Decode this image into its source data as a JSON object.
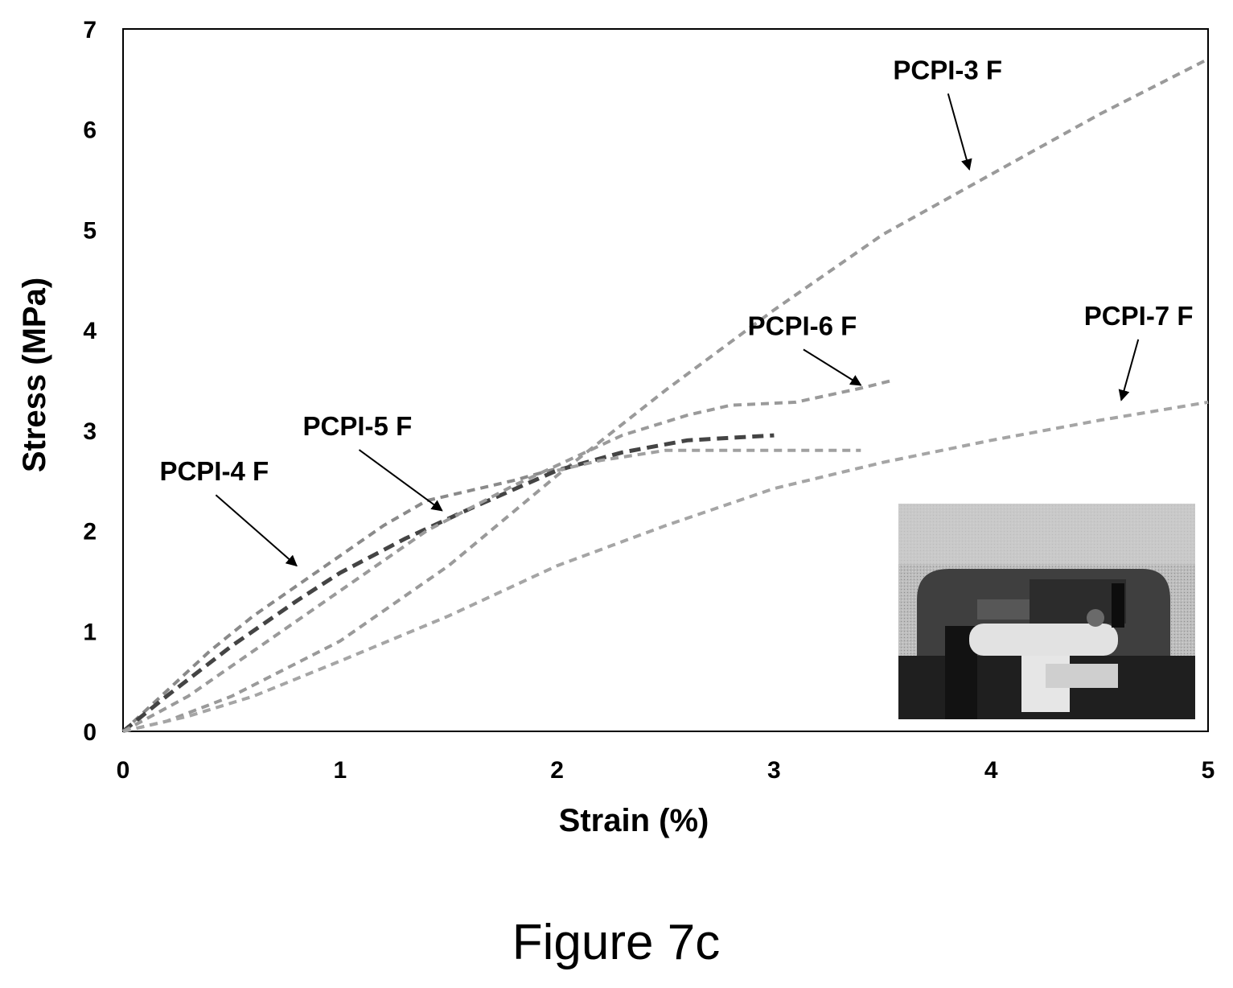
{
  "chart_data": {
    "type": "line",
    "xlabel": "Strain (%)",
    "ylabel": "Stress (MPa)",
    "xlim": [
      0,
      5
    ],
    "ylim": [
      0,
      7
    ],
    "xticks": [
      0,
      1,
      2,
      3,
      4,
      5
    ],
    "yticks": [
      0,
      1,
      2,
      3,
      4,
      5,
      6,
      7
    ],
    "grid": false,
    "legend": "none",
    "series": [
      {
        "name": "PCPI-3 F",
        "color": "#9a9a9a",
        "x": [
          0,
          0.2,
          0.5,
          1.0,
          1.5,
          2.0,
          2.5,
          3.0,
          3.5,
          4.0,
          4.5,
          5.0
        ],
        "y": [
          0,
          0.1,
          0.35,
          0.9,
          1.65,
          2.55,
          3.4,
          4.2,
          4.95,
          5.55,
          6.15,
          6.7
        ]
      },
      {
        "name": "PCPI-4 F",
        "color": "#8a8a8a",
        "x": [
          0,
          0.2,
          0.4,
          0.6,
          0.8,
          1.0,
          1.2,
          1.4,
          1.6,
          1.8,
          2.0
        ],
        "y": [
          0,
          0.4,
          0.8,
          1.15,
          1.45,
          1.75,
          2.05,
          2.3,
          2.4,
          2.5,
          2.62
        ]
      },
      {
        "name": "PCPI-5 F",
        "color": "#444444",
        "x": [
          0,
          0.2,
          0.5,
          0.8,
          1.0,
          1.3,
          1.6,
          2.0,
          2.3,
          2.6,
          3.0
        ],
        "y": [
          0,
          0.35,
          0.85,
          1.3,
          1.58,
          1.92,
          2.22,
          2.6,
          2.78,
          2.9,
          2.95
        ]
      },
      {
        "name": "PCPI-6 F",
        "color": "#9a9a9a",
        "x": [
          0,
          0.3,
          0.6,
          1.0,
          1.4,
          1.8,
          2.0,
          2.3,
          2.6,
          2.8,
          3.1,
          3.4,
          3.55
        ],
        "y": [
          0,
          0.35,
          0.8,
          1.4,
          2.0,
          2.45,
          2.65,
          2.95,
          3.15,
          3.25,
          3.28,
          3.42,
          3.5
        ]
      },
      {
        "name": "PCPI-7 F",
        "color": "#a5a5a5",
        "x": [
          0,
          0.3,
          0.6,
          1.0,
          1.5,
          2.0,
          2.5,
          3.0,
          3.5,
          4.0,
          4.5,
          5.0
        ],
        "y": [
          0,
          0.15,
          0.35,
          0.7,
          1.15,
          1.65,
          2.05,
          2.42,
          2.68,
          2.9,
          3.1,
          3.28
        ]
      },
      {
        "name": "",
        "color": "#a0a0a0",
        "x": [
          2.0,
          2.2,
          2.5,
          2.8,
          3.1,
          3.4
        ],
        "y": [
          2.6,
          2.7,
          2.8,
          2.8,
          2.8,
          2.8
        ]
      }
    ],
    "annotations": [
      {
        "text": "PCPI-3 F",
        "x": 3.8,
        "y": 6.5,
        "arrow_to": [
          3.9,
          5.6
        ]
      },
      {
        "text": "PCPI-4 F",
        "x": 0.42,
        "y": 2.5,
        "arrow_to": [
          0.8,
          1.65
        ]
      },
      {
        "text": "PCPI-5 F",
        "x": 1.08,
        "y": 2.95,
        "arrow_to": [
          1.47,
          2.2
        ]
      },
      {
        "text": "PCPI-6 F",
        "x": 3.13,
        "y": 3.95,
        "arrow_to": [
          3.4,
          3.45
        ]
      },
      {
        "text": "PCPI-7 F",
        "x": 4.68,
        "y": 4.05,
        "arrow_to": [
          4.6,
          3.3
        ]
      }
    ]
  },
  "caption": "Figure 7c",
  "inset": {
    "icon": "tensile-test-photo"
  }
}
